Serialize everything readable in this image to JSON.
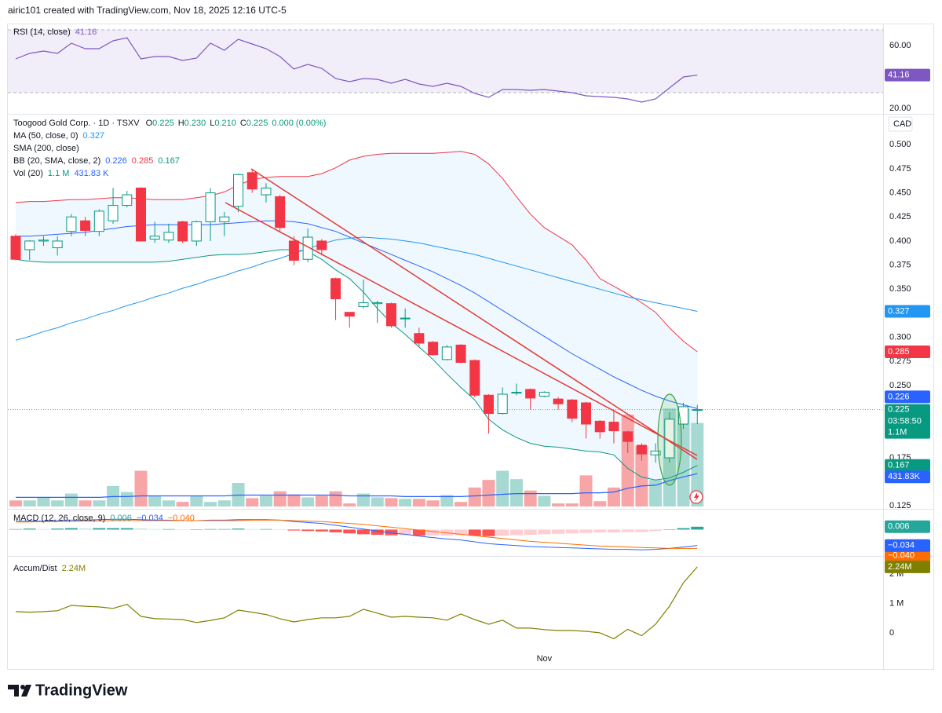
{
  "header": "airic101 created with TradingView.com, Nov 18, 2025 12:16 UTC-5",
  "footer": "TradingView",
  "chart_data": [
    {
      "type": "line",
      "title": "RSI (14, close)",
      "series": [
        {
          "name": "RSI (14, close)",
          "color": "#7e57c2",
          "values": [
            51.5,
            55,
            56.5,
            55,
            61.5,
            58,
            58,
            63,
            65,
            51.5,
            53,
            53,
            50.5,
            52,
            61.5,
            57,
            64,
            61,
            58,
            53,
            45,
            48,
            45.5,
            39,
            37,
            39,
            38.5,
            36,
            38.5,
            35.5,
            34,
            36,
            34,
            29.5,
            27,
            32,
            32,
            31.5,
            32,
            31,
            30,
            28,
            27.5,
            27,
            26,
            24,
            26,
            33,
            40,
            41.16
          ]
        }
      ],
      "band": [
        30,
        70
      ],
      "band_color": "#7e57c2",
      "ylim": [
        16.5,
        72.5
      ],
      "yticks": [
        {
          "value": 60,
          "label": "60.00"
        },
        {
          "value": 20,
          "label": "20.00"
        }
      ]
    },
    {
      "type": "candlestick",
      "title": "Toogood Gold Corp. · 1D · TSXV",
      "currency": "CAD",
      "categories": [
        null,
        null,
        null,
        null,
        null,
        null,
        null,
        null,
        null,
        null,
        null,
        null,
        null,
        null,
        null,
        null,
        null,
        null,
        null,
        null,
        null,
        null,
        null,
        null,
        null,
        null,
        null,
        null,
        null,
        null,
        null,
        null,
        null,
        null,
        null,
        null,
        null,
        null,
        "Nov",
        null,
        null,
        null,
        null,
        null,
        null,
        null,
        null,
        null,
        null,
        null
      ],
      "open": [
        0.405,
        0.391,
        0.4,
        0.393,
        0.41,
        0.421,
        0.41,
        0.421,
        0.437,
        0.455,
        0.402,
        0.401,
        0.42,
        0.4,
        0.42,
        0.42,
        0.436,
        0.471,
        0.448,
        0.446,
        0.4,
        0.381,
        0.4,
        0.361,
        0.326,
        0.332,
        0.335,
        0.335,
        0.32,
        0.304,
        0.295,
        0.277,
        0.292,
        0.276,
        0.24,
        0.221,
        0.243,
        0.246,
        0.239,
        0.236,
        0.235,
        0.232,
        0.213,
        0.212,
        0.202,
        0.188,
        0.178,
        0.175,
        0.21,
        0.225
      ],
      "high": [
        0.407,
        0.401,
        0.405,
        0.405,
        0.428,
        0.425,
        0.433,
        0.455,
        0.452,
        0.456,
        0.42,
        0.418,
        0.421,
        0.421,
        0.455,
        0.43,
        0.47,
        0.475,
        0.46,
        0.448,
        0.405,
        0.413,
        0.402,
        0.362,
        0.326,
        0.36,
        0.338,
        0.336,
        0.33,
        0.31,
        0.296,
        0.292,
        0.293,
        0.277,
        0.241,
        0.248,
        0.252,
        0.247,
        0.244,
        0.238,
        0.236,
        0.233,
        0.214,
        0.225,
        0.203,
        0.19,
        0.19,
        0.222,
        0.232,
        0.23
      ],
      "low": [
        0.38,
        0.38,
        0.395,
        0.385,
        0.405,
        0.405,
        0.405,
        0.418,
        0.435,
        0.4,
        0.398,
        0.398,
        0.398,
        0.395,
        0.4,
        0.405,
        0.43,
        0.45,
        0.44,
        0.41,
        0.375,
        0.378,
        0.385,
        0.318,
        0.31,
        0.33,
        0.315,
        0.31,
        0.31,
        0.29,
        0.281,
        0.276,
        0.273,
        0.238,
        0.2,
        0.22,
        0.24,
        0.225,
        0.238,
        0.225,
        0.212,
        0.195,
        0.195,
        0.19,
        0.18,
        0.172,
        0.17,
        0.17,
        0.205,
        0.21
      ],
      "close": [
        0.381,
        0.4,
        0.401,
        0.4,
        0.425,
        0.411,
        0.431,
        0.437,
        0.448,
        0.4,
        0.405,
        0.409,
        0.4,
        0.42,
        0.45,
        0.425,
        0.469,
        0.454,
        0.455,
        0.414,
        0.38,
        0.404,
        0.391,
        0.34,
        0.322,
        0.336,
        0.336,
        0.312,
        0.32,
        0.294,
        0.282,
        0.29,
        0.274,
        0.24,
        0.221,
        0.241,
        0.243,
        0.237,
        0.243,
        0.231,
        0.216,
        0.21,
        0.202,
        0.203,
        0.192,
        0.179,
        0.182,
        0.215,
        0.228,
        0.225
      ],
      "legend": [
        [
          "O",
          "0.225"
        ],
        [
          "H",
          "0.230"
        ],
        [
          "L",
          "0.210"
        ],
        [
          "C",
          "0.225"
        ]
      ],
      "change": "0.000 (0.00%)",
      "countdown": "03:58:50",
      "up_color": "#089981",
      "down_color": "#f23645",
      "ylim": [
        0.122,
        0.532
      ],
      "yticks": [
        {
          "value": 0.5,
          "label": "0.500"
        },
        {
          "value": 0.475,
          "label": "0.475"
        },
        {
          "value": 0.45,
          "label": "0.450"
        },
        {
          "value": 0.425,
          "label": "0.425"
        },
        {
          "value": 0.4,
          "label": "0.400"
        },
        {
          "value": 0.375,
          "label": "0.375"
        },
        {
          "value": 0.35,
          "label": "0.350"
        },
        {
          "value": 0.3,
          "label": "0.300"
        },
        {
          "value": 0.275,
          "label": "0.275"
        },
        {
          "value": 0.25,
          "label": "0.250"
        },
        {
          "value": 0.175,
          "label": "0.175"
        },
        {
          "value": 0.125,
          "label": "0.125"
        }
      ],
      "ma": {
        "name": "MA (50, close, 0)",
        "color": "#2196f3",
        "values": [
          0.297,
          0.301,
          0.306,
          0.31,
          0.315,
          0.319,
          0.324,
          0.328,
          0.333,
          0.337,
          0.342,
          0.346,
          0.351,
          0.355,
          0.36,
          0.364,
          0.369,
          0.373,
          0.378,
          0.382,
          0.387,
          0.392,
          0.397,
          0.401,
          0.403,
          0.404,
          0.403,
          0.402,
          0.4,
          0.398,
          0.395,
          0.392,
          0.389,
          0.386,
          0.382,
          0.378,
          0.374,
          0.37,
          0.366,
          0.362,
          0.358,
          0.354,
          0.35,
          0.346,
          0.342,
          0.339,
          0.336,
          0.333,
          0.33,
          0.327
        ]
      },
      "sma": {
        "name": "SMA (200, close)"
      },
      "bb": {
        "name": "BB (20, SMA, close, 2)",
        "fill": "#2196f3",
        "basis": {
          "color": "#2962ff",
          "values": [
            0.405,
            0.405,
            0.406,
            0.407,
            0.408,
            0.409,
            0.411,
            0.413,
            0.415,
            0.416,
            0.417,
            0.417,
            0.417,
            0.417,
            0.417,
            0.418,
            0.419,
            0.42,
            0.421,
            0.421,
            0.42,
            0.418,
            0.414,
            0.41,
            0.404,
            0.398,
            0.392,
            0.386,
            0.38,
            0.374,
            0.368,
            0.361,
            0.354,
            0.346,
            0.337,
            0.328,
            0.319,
            0.31,
            0.301,
            0.292,
            0.283,
            0.275,
            0.267,
            0.259,
            0.252,
            0.245,
            0.239,
            0.234,
            0.23,
            0.226
          ]
        },
        "upper": {
          "color": "#f23645",
          "values": [
            0.44,
            0.441,
            0.441,
            0.442,
            0.443,
            0.443,
            0.444,
            0.445,
            0.445,
            0.444,
            0.443,
            0.443,
            0.443,
            0.445,
            0.447,
            0.451,
            0.458,
            0.464,
            0.466,
            0.467,
            0.467,
            0.467,
            0.47,
            0.476,
            0.484,
            0.488,
            0.49,
            0.491,
            0.491,
            0.491,
            0.491,
            0.492,
            0.493,
            0.49,
            0.48,
            0.465,
            0.446,
            0.428,
            0.414,
            0.405,
            0.396,
            0.38,
            0.361,
            0.353,
            0.345,
            0.336,
            0.326,
            0.31,
            0.296,
            0.285
          ]
        },
        "lower": {
          "color": "#089981",
          "values": [
            0.381,
            0.379,
            0.378,
            0.378,
            0.378,
            0.378,
            0.378,
            0.378,
            0.378,
            0.378,
            0.378,
            0.379,
            0.381,
            0.383,
            0.385,
            0.386,
            0.386,
            0.387,
            0.389,
            0.391,
            0.391,
            0.389,
            0.381,
            0.37,
            0.361,
            0.347,
            0.33,
            0.315,
            0.303,
            0.29,
            0.277,
            0.262,
            0.248,
            0.235,
            0.215,
            0.204,
            0.196,
            0.19,
            0.187,
            0.186,
            0.184,
            0.182,
            0.181,
            0.178,
            0.164,
            0.155,
            0.152,
            0.154,
            0.16,
            0.167
          ]
        }
      },
      "volume": {
        "name": "Vol (20)",
        "up_color": "#a5d9d2",
        "down_color": "#f7a5a6",
        "vlim": [
          0,
          5.17
        ],
        "values": [
          0.08,
          0.08,
          0.12,
          0.08,
          0.17,
          0.08,
          0.08,
          0.27,
          0.19,
          0.47,
          0.14,
          0.08,
          0.06,
          0.14,
          0.06,
          0.08,
          0.31,
          0.11,
          0.14,
          0.2,
          0.16,
          0.12,
          0.14,
          0.2,
          0.04,
          0.17,
          0.12,
          0.11,
          0.1,
          0.1,
          0.08,
          0.15,
          0.06,
          0.25,
          0.35,
          0.47,
          0.36,
          0.21,
          0.14,
          0.04,
          0.04,
          0.41,
          0.07,
          0.25,
          1.21,
          0.8,
          0.35,
          1.29,
          1.28,
          1.1
        ],
        "value_label": "1.1 M",
        "axis_label": "1.1M",
        "ma": {
          "color": "#2962ff",
          "value_label": "431.83 K",
          "axis_label": "431.83K",
          "values": [
            0.12,
            0.12,
            0.12,
            0.12,
            0.12,
            0.12,
            0.12,
            0.13,
            0.13,
            0.14,
            0.14,
            0.14,
            0.14,
            0.14,
            0.14,
            0.14,
            0.15,
            0.15,
            0.15,
            0.15,
            0.15,
            0.15,
            0.15,
            0.15,
            0.14,
            0.14,
            0.14,
            0.14,
            0.13,
            0.13,
            0.13,
            0.13,
            0.13,
            0.14,
            0.15,
            0.16,
            0.17,
            0.17,
            0.17,
            0.17,
            0.17,
            0.18,
            0.18,
            0.19,
            0.24,
            0.27,
            0.28,
            0.34,
            0.39,
            0.43183
          ]
        }
      }
    },
    {
      "type": "macd",
      "title": "MACD (12, 26, close, 9)",
      "histogram": {
        "colors": [
          "#26a69a",
          "#b2dfdb",
          "#ff5252",
          "#ffcdd2"
        ],
        "values": [
          0.001,
          0.002,
          0.001,
          0.002,
          0.003,
          0.002,
          0.003,
          0.003,
          0.003,
          0.002,
          0.001,
          0.001,
          0,
          0,
          0.001,
          0.001,
          0.002,
          0.001,
          0.001,
          0,
          -0.002,
          -0.003,
          -0.004,
          -0.006,
          -0.008,
          -0.01,
          -0.011,
          -0.012,
          -0.012,
          -0.013,
          -0.013,
          -0.013,
          -0.012,
          -0.013,
          -0.014,
          -0.013,
          -0.012,
          -0.011,
          -0.01,
          -0.009,
          -0.008,
          -0.007,
          -0.006,
          -0.006,
          -0.005,
          -0.005,
          -0.003,
          0,
          0.003,
          0.006
        ]
      },
      "macd": {
        "color": "#2962ff",
        "value_label": "−0.034",
        "values": [
          0.017,
          0.018,
          0.018,
          0.019,
          0.02,
          0.02,
          0.021,
          0.022,
          0.022,
          0.021,
          0.02,
          0.02,
          0.019,
          0.019,
          0.02,
          0.02,
          0.021,
          0.021,
          0.021,
          0.02,
          0.017,
          0.015,
          0.013,
          0.009,
          0.005,
          0.001,
          -0.003,
          -0.007,
          -0.01,
          -0.014,
          -0.017,
          -0.02,
          -0.022,
          -0.026,
          -0.03,
          -0.032,
          -0.034,
          -0.036,
          -0.037,
          -0.038,
          -0.039,
          -0.04,
          -0.041,
          -0.042,
          -0.042,
          -0.043,
          -0.042,
          -0.04,
          -0.037,
          -0.034
        ]
      },
      "signal": {
        "color": "#ff6d00",
        "value_label": "−0.040",
        "values": [
          0.016,
          0.016,
          0.017,
          0.017,
          0.017,
          0.018,
          0.018,
          0.019,
          0.019,
          0.019,
          0.019,
          0.019,
          0.019,
          0.019,
          0.019,
          0.019,
          0.019,
          0.02,
          0.02,
          0.02,
          0.019,
          0.018,
          0.017,
          0.015,
          0.013,
          0.011,
          0.008,
          0.005,
          0.002,
          -0.001,
          -0.004,
          -0.007,
          -0.01,
          -0.013,
          -0.016,
          -0.019,
          -0.022,
          -0.025,
          -0.027,
          -0.029,
          -0.031,
          -0.033,
          -0.035,
          -0.036,
          -0.037,
          -0.038,
          -0.039,
          -0.04,
          -0.04,
          -0.04
        ]
      },
      "ylim": [
        -0.056,
        0.044
      ]
    },
    {
      "type": "line",
      "title": "Accum/Dist",
      "series": [
        {
          "name": "Accum/Dist",
          "color": "#808000",
          "value_label": "2.24M",
          "values": [
            0.72,
            0.7,
            0.72,
            0.75,
            0.93,
            0.9,
            0.88,
            0.83,
            0.97,
            0.56,
            0.48,
            0.47,
            0.45,
            0.35,
            0.42,
            0.51,
            0.77,
            0.7,
            0.62,
            0.48,
            0.37,
            0.45,
            0.51,
            0.51,
            0.56,
            0.8,
            0.67,
            0.53,
            0.56,
            0.53,
            0.51,
            0.43,
            0.64,
            0.45,
            0.29,
            0.43,
            0.16,
            0.16,
            0.11,
            0.08,
            0.08,
            0.05,
            0,
            -0.2,
            0.12,
            -0.1,
            0.29,
            0.9,
            1.7,
            2.24
          ]
        }
      ],
      "ylim": [
        -1.23,
        2.61
      ],
      "yticks": [
        {
          "value": 2,
          "label": "2 M"
        },
        {
          "value": 1,
          "label": "1 M"
        },
        0
      ]
    }
  ]
}
